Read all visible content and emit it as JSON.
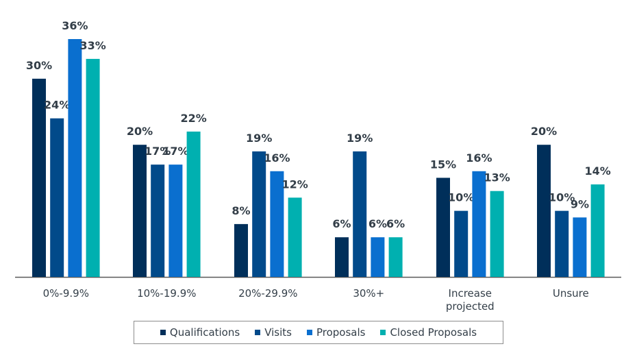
{
  "chart_data": {
    "type": "bar",
    "categories": [
      "0%-9.9%",
      "10%-19.9%",
      "20%-29.9%",
      "30%+",
      [
        "Increase",
        "projected"
      ],
      "Unsure"
    ],
    "series": [
      {
        "name": "Qualifications",
        "color": "#002f5a",
        "values": [
          30,
          20,
          8,
          6,
          15,
          20
        ],
        "labels": [
          "30%",
          "20%",
          "8%",
          "6%",
          "15%",
          "20%"
        ]
      },
      {
        "name": "Visits",
        "color": "#014a8a",
        "values": [
          24,
          17,
          19,
          19,
          10,
          10
        ],
        "labels": [
          "24%",
          "17%",
          "19%",
          "19%",
          "10%",
          "10%"
        ]
      },
      {
        "name": "Proposals",
        "color": "#0a6fcf",
        "values": [
          36,
          17,
          16,
          6,
          16,
          9
        ],
        "labels": [
          "36%",
          "17%",
          "16%",
          "6%",
          "16%",
          "9%"
        ]
      },
      {
        "name": "Closed Proposals",
        "color": "#00b0b0",
        "values": [
          33,
          22,
          12,
          6,
          13,
          14
        ],
        "labels": [
          "33%",
          "22%",
          "12%",
          "6%",
          "13%",
          "14%"
        ]
      }
    ],
    "ylim": [
      0,
      36
    ],
    "grid": false,
    "legend_position": "bottom"
  }
}
